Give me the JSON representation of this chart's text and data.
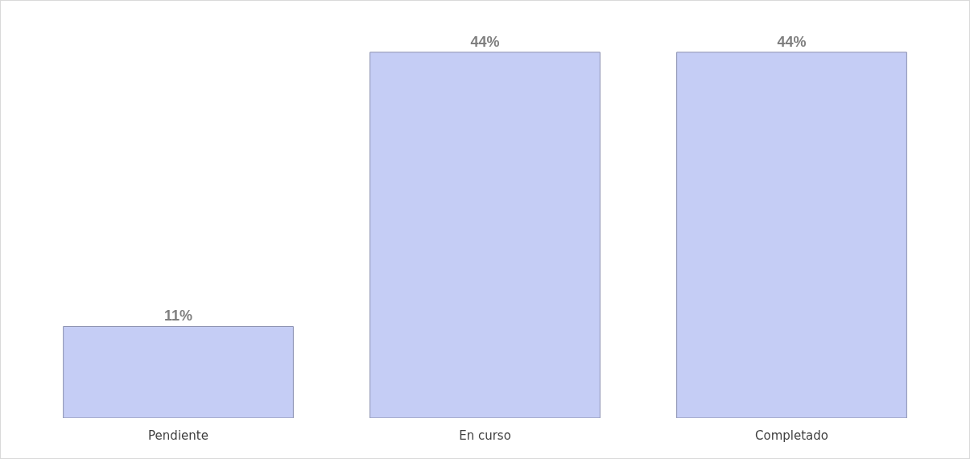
{
  "chart_data": {
    "type": "bar",
    "categories": [
      "Pendiente",
      "En curso",
      "Completado"
    ],
    "values": [
      11,
      44,
      44
    ],
    "value_labels": [
      "11%",
      "44%",
      "44%"
    ],
    "color": "#c5cdf5",
    "grid": false
  }
}
